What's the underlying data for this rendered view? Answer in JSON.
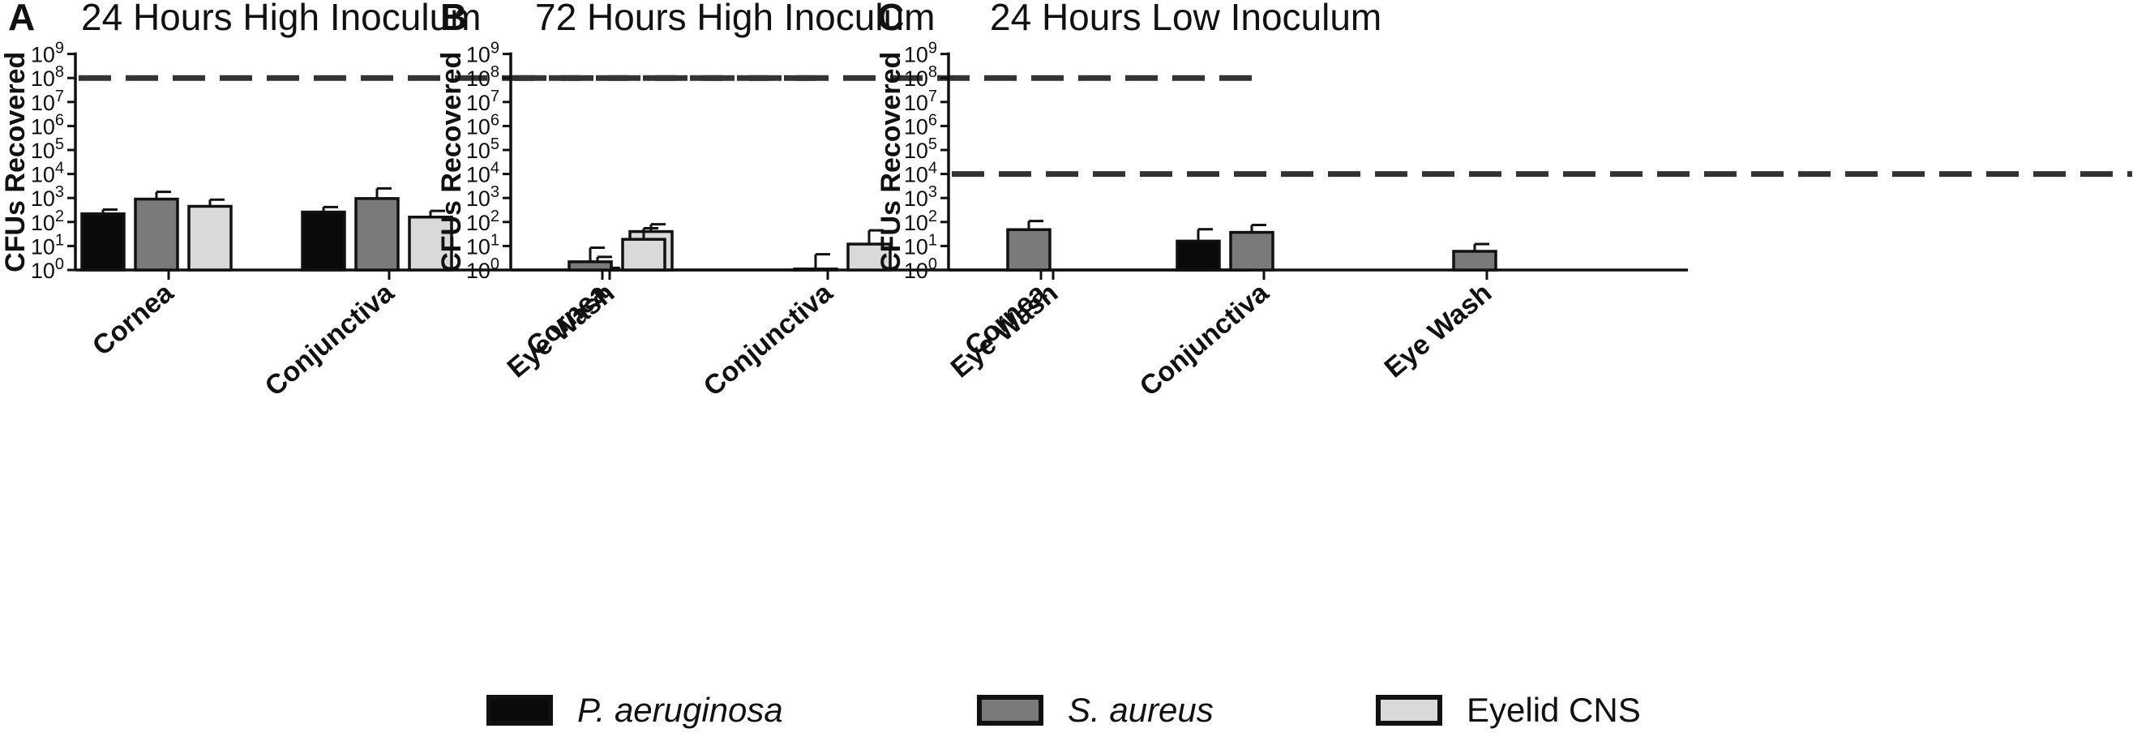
{
  "chart_data": [
    {
      "panel_label": "A",
      "type": "bar",
      "title": "24 Hours High Inoculum",
      "ylabel": "CFUs Recovered",
      "xlabel": "",
      "yscale": "log",
      "ylim": [
        1,
        1000000000
      ],
      "yticks": [
        1,
        10,
        100,
        1000,
        10000,
        100000,
        1000000,
        10000000,
        100000000,
        1000000000
      ],
      "reference_line": 100000000,
      "categories": [
        "Cornea",
        "Conjunctiva",
        "Eye Wash"
      ],
      "series": [
        {
          "name": "P. aeruginosa",
          "values": [
            220,
            260,
            null
          ],
          "errors": [
            330,
            420,
            null
          ]
        },
        {
          "name": "S. aureus",
          "values": [
            900,
            950,
            1.2
          ],
          "errors": [
            1800,
            2500,
            3.5
          ]
        },
        {
          "name": "Eyelid CNS",
          "values": [
            450,
            160,
            40
          ],
          "errors": [
            850,
            290,
            80
          ]
        }
      ],
      "legend": "bottom",
      "grid": false
    },
    {
      "panel_label": "B",
      "type": "bar",
      "title": "72 Hours High Inoculum",
      "ylabel": "CFUs Recovered",
      "xlabel": "",
      "yscale": "log",
      "ylim": [
        1,
        1000000000
      ],
      "yticks": [
        1,
        10,
        100,
        1000,
        10000,
        100000,
        1000000,
        10000000,
        100000000,
        1000000000
      ],
      "reference_line": 100000000,
      "categories": [
        "Cornea",
        "Conjunctiva",
        "Eye Wash"
      ],
      "series": [
        {
          "name": "P. aeruginosa",
          "values": [
            null,
            null,
            null
          ],
          "errors": [
            null,
            null,
            null
          ]
        },
        {
          "name": "S. aureus",
          "values": [
            2.2,
            1.1,
            null
          ],
          "errors": [
            8.5,
            4.5,
            null
          ]
        },
        {
          "name": "Eyelid CNS",
          "values": [
            19,
            12,
            null
          ],
          "errors": [
            55,
            45,
            null
          ]
        }
      ],
      "legend": "bottom",
      "grid": false
    },
    {
      "panel_label": "C",
      "type": "bar",
      "title": "24 Hours Low Inoculum",
      "ylabel": "CFUs Recovered",
      "xlabel": "",
      "yscale": "log",
      "ylim": [
        1,
        1000000000
      ],
      "yticks": [
        1,
        10,
        100,
        1000,
        10000,
        100000,
        1000000,
        10000000,
        100000000,
        1000000000
      ],
      "reference_line": 10000,
      "categories": [
        "Cornea",
        "Conjunctiva",
        "Eye Wash"
      ],
      "series": [
        {
          "name": "P. aeruginosa",
          "values": [
            null,
            16,
            null
          ],
          "errors": [
            null,
            50,
            null
          ]
        },
        {
          "name": "S. aureus",
          "values": [
            48,
            37,
            6
          ],
          "errors": [
            110,
            75,
            12
          ]
        },
        {
          "name": "Eyelid CNS",
          "values": [
            null,
            null,
            null
          ],
          "errors": [
            null,
            null,
            null
          ]
        }
      ],
      "legend": "bottom",
      "grid": false
    }
  ],
  "tick_base": "10",
  "tick_exponents": [
    "0",
    "1",
    "2",
    "3",
    "4",
    "5",
    "6",
    "7",
    "8",
    "9"
  ],
  "legend": [
    {
      "label": "P. aeruginosa",
      "italic": true,
      "color": "#0a0a0a"
    },
    {
      "label": "S. aureus",
      "italic": true,
      "color": "#7a7a7a"
    },
    {
      "label": "Eyelid CNS",
      "italic": false,
      "color": "#d9d9d9"
    }
  ],
  "colors": {
    "axis": "#111111",
    "dash": "#333333"
  }
}
